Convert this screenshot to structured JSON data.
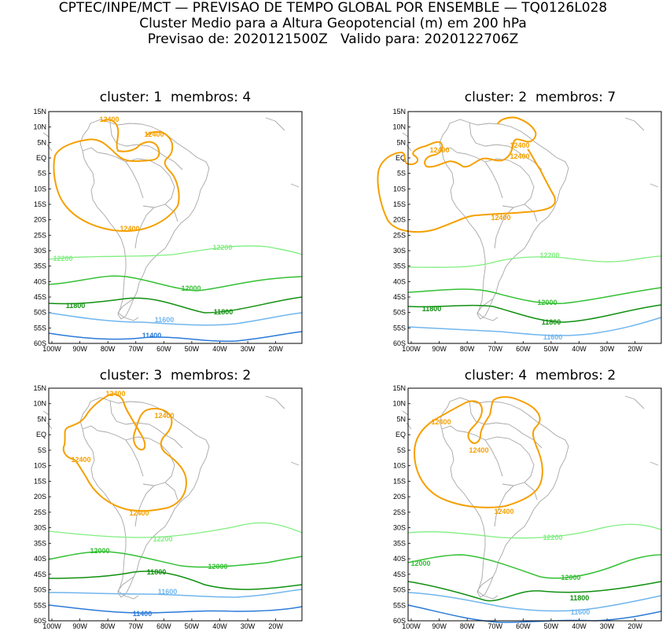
{
  "header": {
    "line1": "CPTEC/INPE/MCT — PREVISAO DE TEMPO GLOBAL POR ENSEMBLE — TQ0126L028",
    "line2": "Cluster Medio para a Altura Geopotencial (m) em 200 hPa",
    "line3": "Previsao de: 2020121500Z   Valido para: 2020122706Z"
  },
  "axes": {
    "lat_labels": [
      "15N",
      "10N",
      "5N",
      "EQ",
      "5S",
      "10S",
      "15S",
      "20S",
      "25S",
      "30S",
      "35S",
      "40S",
      "45S",
      "50S",
      "55S",
      "60S"
    ],
    "lon_labels": [
      "100W",
      "90W",
      "80W",
      "70W",
      "60W",
      "50W",
      "40W",
      "30W",
      "20W"
    ]
  },
  "colors": {
    "c12400": "#f5a000",
    "c12200": "#80ee80",
    "c12000": "#33c033",
    "c11800": "#109010",
    "c11600": "#70b6ee",
    "c11400": "#2a7ad8",
    "coast": "#a6a6a6"
  },
  "panels": [
    {
      "title": "cluster: 1  membros: 4",
      "labels": {
        "a": "12400",
        "b": "12400",
        "c": "12400",
        "d": "12200",
        "e": "12200",
        "f": "12000",
        "g": "11800",
        "h": "11800",
        "i": "11600",
        "j": "11400"
      }
    },
    {
      "title": "cluster: 2  membros: 7",
      "labels": {
        "a": "12400",
        "b": "12400",
        "c": "12400",
        "d": "12400",
        "e": "12200",
        "f": "12000",
        "g": "11800",
        "h": "11800",
        "i": "11600"
      }
    },
    {
      "title": "cluster: 3  membros: 2",
      "labels": {
        "a": "12400",
        "b": "12400",
        "c": "12400",
        "d": "12400",
        "e": "12200",
        "f": "12000",
        "g": "12000",
        "h": "11800",
        "i": "11600",
        "j": "11400"
      }
    },
    {
      "title": "cluster: 4  membros: 2",
      "labels": {
        "a": "12400",
        "b": "12400",
        "c": "12400",
        "d": "12200",
        "e": "12000",
        "f": "12000",
        "g": "11800",
        "h": "11600"
      }
    }
  ]
}
